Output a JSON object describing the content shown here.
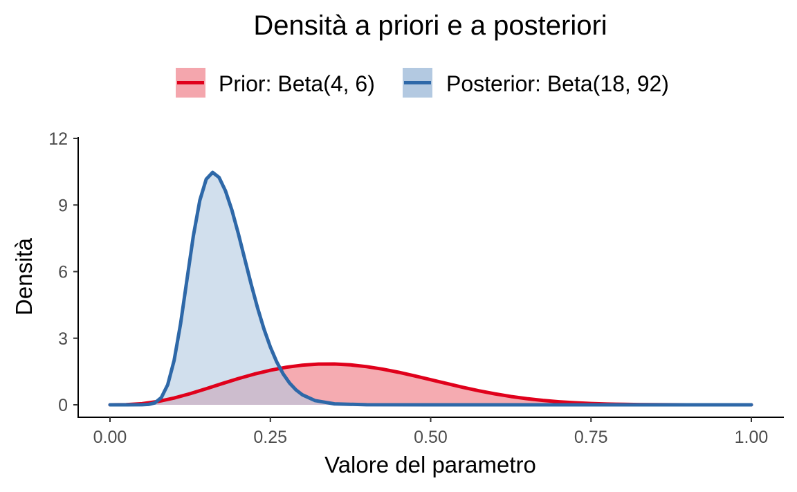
{
  "chart_data": {
    "type": "area",
    "title": "Densità a priori e a posteriori",
    "xlabel": "Valore del parametro",
    "ylabel": "Densità",
    "xlim": [
      0,
      1
    ],
    "ylim": [
      0,
      12
    ],
    "x_ticks": [
      0,
      0.25,
      0.5,
      0.75,
      1
    ],
    "x_tick_labels": [
      "0.00",
      "0.25",
      "0.50",
      "0.75",
      "1.00"
    ],
    "y_ticks": [
      0,
      3,
      6,
      9,
      12
    ],
    "y_tick_labels": [
      "0",
      "3",
      "6",
      "9",
      "12"
    ],
    "grid": false,
    "legend_position": "top",
    "series": [
      {
        "name": "Prior: Beta(4, 6)",
        "color": "#e0001b",
        "fill": "#f4a6ad",
        "x": [
          0,
          0.025,
          0.05,
          0.075,
          0.1,
          0.125,
          0.15,
          0.175,
          0.2,
          0.225,
          0.25,
          0.275,
          0.3,
          0.325,
          0.35,
          0.375,
          0.4,
          0.425,
          0.45,
          0.475,
          0.5,
          0.525,
          0.55,
          0.575,
          0.6,
          0.625,
          0.65,
          0.675,
          0.7,
          0.725,
          0.75,
          0.775,
          0.8,
          0.825,
          0.85,
          0.875,
          0.9,
          0.925,
          0.95,
          0.975,
          1
        ],
        "values": [
          0,
          0.0072,
          0.0515,
          0.1512,
          0.3062,
          0.5034,
          0.7258,
          0.9565,
          1.1796,
          1.3837,
          1.5573,
          1.6932,
          1.7862,
          1.8348,
          1.8384,
          1.799,
          1.7199,
          1.6064,
          1.4654,
          1.3046,
          1.1328,
          0.9588,
          0.7904,
          0.6339,
          0.4946,
          0.3749,
          0.2763,
          0.1978,
          0.1372,
          0.0919,
          0.0593,
          0.0366,
          0.0215,
          0.0119,
          0.0061,
          0.0028,
          0.0011,
          0.0004,
          0.0001,
          0,
          0
        ]
      },
      {
        "name": "Posterior: Beta(18, 92)",
        "color": "#2e68a8",
        "fill": "#b3c9e1",
        "x": [
          0,
          0.025,
          0.05,
          0.06,
          0.07,
          0.08,
          0.09,
          0.1,
          0.11,
          0.12,
          0.13,
          0.14,
          0.15,
          0.16,
          0.17,
          0.18,
          0.19,
          0.2,
          0.21,
          0.22,
          0.23,
          0.24,
          0.25,
          0.26,
          0.27,
          0.28,
          0.29,
          0.3,
          0.32,
          0.35,
          0.4,
          0.5,
          0.75,
          1
        ],
        "values": [
          0,
          0,
          0.0023,
          0.0174,
          0.0886,
          0.3246,
          0.9057,
          2.0031,
          3.6434,
          5.6382,
          7.6163,
          9.2016,
          10.1618,
          10.4683,
          10.2451,
          9.6419,
          8.7756,
          7.7219,
          6.5815,
          5.4424,
          4.3746,
          3.4202,
          2.6041,
          1.9296,
          1.3926,
          0.9795,
          0.672,
          0.4497,
          0.188,
          0.0433,
          0.0022,
          0,
          0,
          0
        ]
      }
    ]
  }
}
